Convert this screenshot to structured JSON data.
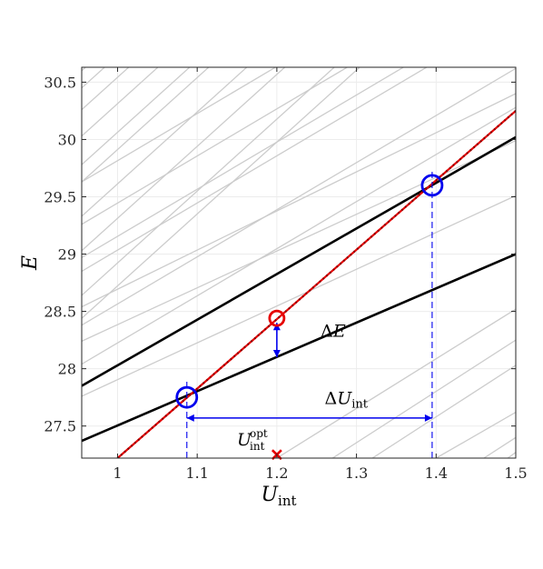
{
  "chart_data": {
    "type": "line",
    "xlabel": "U",
    "xlabel_sub": "int",
    "ylabel": "E",
    "xlim": [
      0.955,
      1.5
    ],
    "ylim": [
      27.22,
      30.63
    ],
    "xticks": [
      1,
      1.1,
      1.2,
      1.3,
      1.4,
      1.5
    ],
    "yticks": [
      27.5,
      28,
      28.5,
      29,
      29.5,
      30,
      30.5
    ],
    "xtick_labels": [
      "1",
      "1.1",
      "1.2",
      "1.3",
      "1.4",
      "1.5"
    ],
    "ytick_labels": [
      "27.5",
      "28",
      "28.5",
      "29",
      "29.5",
      "30",
      "30.5"
    ],
    "grid": true,
    "colors": {
      "background_lines": "#cccccc",
      "main_lines": "#000000",
      "fit_line": "#e60000",
      "markers": "#0000ee",
      "annotation": "#0000ee"
    },
    "series": [
      {
        "role": "background",
        "x": [
          0.955,
          1.5
        ],
        "y": [
          28.44,
          31.86
        ]
      },
      {
        "role": "background",
        "x": [
          0.955,
          1.5
        ],
        "y": [
          28.64,
          32.06
        ]
      },
      {
        "role": "background",
        "x": [
          0.955,
          1.5
        ],
        "y": [
          29.03,
          32.45
        ]
      },
      {
        "role": "background",
        "x": [
          0.955,
          1.5
        ],
        "y": [
          29.33,
          32.75
        ]
      },
      {
        "role": "background",
        "x": [
          0.955,
          1.5
        ],
        "y": [
          29.63,
          33.05
        ]
      },
      {
        "role": "background",
        "x": [
          0.955,
          1.5
        ],
        "y": [
          29.78,
          33.2
        ]
      },
      {
        "role": "background",
        "x": [
          0.955,
          1.5
        ],
        "y": [
          30.03,
          33.45
        ]
      },
      {
        "role": "background",
        "x": [
          0.955,
          1.5
        ],
        "y": [
          30.26,
          33.68
        ]
      },
      {
        "role": "background",
        "x": [
          0.955,
          1.5
        ],
        "y": [
          30.45,
          33.87
        ]
      },
      {
        "role": "background",
        "x": [
          0.955,
          1.5
        ],
        "y": [
          30.6,
          34.02
        ]
      },
      {
        "role": "background",
        "x": [
          0.955,
          1.5
        ],
        "y": [
          28.38,
          30.62
        ]
      },
      {
        "role": "background",
        "x": [
          0.955,
          1.5
        ],
        "y": [
          28.85,
          31.09
        ]
      },
      {
        "role": "background",
        "x": [
          0.955,
          1.5
        ],
        "y": [
          28.97,
          31.21
        ]
      },
      {
        "role": "background",
        "x": [
          0.955,
          1.5
        ],
        "y": [
          29.26,
          31.5
        ]
      },
      {
        "role": "background",
        "x": [
          0.955,
          1.5
        ],
        "y": [
          29.63,
          31.87
        ]
      },
      {
        "role": "background",
        "x": [
          0.955,
          1.5
        ],
        "y": [
          28.04,
          30.28
        ]
      },
      {
        "role": "background",
        "x": [
          0.955,
          1.5
        ],
        "y": [
          28.54,
          30.4
        ]
      },
      {
        "role": "background",
        "x": [
          0.955,
          1.5
        ],
        "y": [
          27.76,
          29.51
        ]
      },
      {
        "role": "background",
        "x": [
          0.955,
          1.5
        ],
        "y": [
          28.24,
          29.99
        ]
      },
      {
        "role": "background",
        "x": [
          1.2,
          1.5
        ],
        "y": [
          27.22,
          28.52
        ]
      },
      {
        "role": "background",
        "x": [
          1.27,
          1.5
        ],
        "y": [
          27.22,
          28.25
        ]
      },
      {
        "role": "background",
        "x": [
          1.32,
          1.5
        ],
        "y": [
          27.22,
          28.03
        ]
      },
      {
        "role": "background",
        "x": [
          1.4,
          1.5
        ],
        "y": [
          27.22,
          27.62
        ]
      },
      {
        "role": "background",
        "x": [
          1.46,
          1.5
        ],
        "y": [
          27.22,
          27.4
        ]
      },
      {
        "role": "background",
        "x": [
          1.49,
          1.5
        ],
        "y": [
          27.22,
          27.27
        ]
      },
      {
        "role": "main",
        "x": [
          0.955,
          1.5
        ],
        "y": [
          27.85,
          30.02
        ]
      },
      {
        "role": "main",
        "x": [
          0.955,
          1.5
        ],
        "y": [
          27.37,
          29.0
        ]
      },
      {
        "role": "fit",
        "x": [
          1.0,
          1.5
        ],
        "y": [
          27.22,
          30.25
        ]
      }
    ],
    "points": [
      {
        "x": 1.087,
        "y": 27.75,
        "marker": "circle",
        "color": "#0000ee"
      },
      {
        "x": 1.395,
        "y": 29.6,
        "marker": "circle",
        "color": "#0000ee"
      },
      {
        "x": 1.2,
        "y": 28.44,
        "marker": "circle",
        "color": "#e60000"
      },
      {
        "x": 1.2,
        "y": 27.25,
        "marker": "x",
        "color": "#e60000"
      }
    ],
    "annotations": {
      "delta_e": {
        "label": "ΔE",
        "x": 1.2,
        "y_from": 28.4,
        "y_to": 28.1,
        "label_x": 1.255,
        "label_y": 28.28
      },
      "delta_u": {
        "label": "ΔU",
        "label_sub": "int",
        "x_from": 1.087,
        "x_to": 1.395,
        "y": 27.57,
        "label_x": 1.26,
        "label_y": 27.69
      },
      "u_opt": {
        "label": "U",
        "label_sub": "int",
        "label_sup": "opt",
        "label_x": 1.15,
        "label_y": 27.33
      },
      "guides": [
        {
          "x": 1.087,
          "y_from": 27.22,
          "y_to": 27.9
        },
        {
          "x": 1.395,
          "y_from": 27.22,
          "y_to": 29.75
        }
      ]
    }
  }
}
